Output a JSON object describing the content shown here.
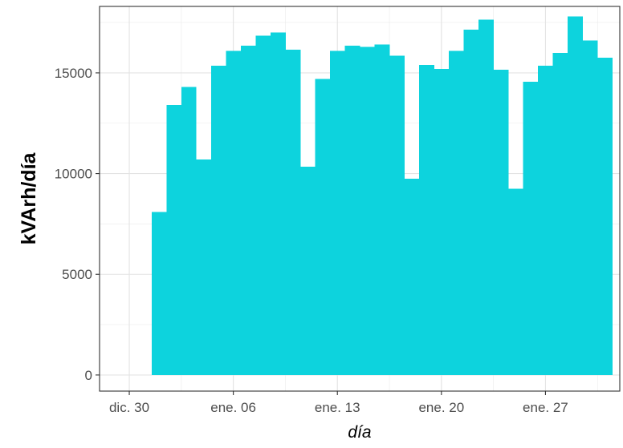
{
  "chart_data": {
    "type": "bar",
    "title": "",
    "xlabel": "día",
    "ylabel": "kVArh/día",
    "x_axis_type": "date",
    "x_domain": [
      "2022-12-28",
      "2023-02-01"
    ],
    "xticks": [
      {
        "date": "2022-12-30",
        "label": "dic. 30"
      },
      {
        "date": "2023-01-06",
        "label": "ene. 06"
      },
      {
        "date": "2023-01-13",
        "label": "ene. 13"
      },
      {
        "date": "2023-01-20",
        "label": "ene. 20"
      },
      {
        "date": "2023-01-27",
        "label": "ene. 27"
      }
    ],
    "ylim": [
      -800,
      18300
    ],
    "yticks": [
      0,
      5000,
      10000,
      15000
    ],
    "grid": true,
    "bar_color": "#0dd3dd",
    "dates": [
      "2023-01-01",
      "2023-01-02",
      "2023-01-03",
      "2023-01-04",
      "2023-01-05",
      "2023-01-06",
      "2023-01-07",
      "2023-01-08",
      "2023-01-09",
      "2023-01-10",
      "2023-01-11",
      "2023-01-12",
      "2023-01-13",
      "2023-01-14",
      "2023-01-15",
      "2023-01-16",
      "2023-01-17",
      "2023-01-18",
      "2023-01-19",
      "2023-01-20",
      "2023-01-21",
      "2023-01-22",
      "2023-01-23",
      "2023-01-24",
      "2023-01-25",
      "2023-01-26",
      "2023-01-27",
      "2023-01-28",
      "2023-01-29",
      "2023-01-30",
      "2023-01-31"
    ],
    "values": [
      8100,
      13400,
      14300,
      10700,
      15350,
      16100,
      16350,
      16850,
      17000,
      16150,
      10350,
      14700,
      16100,
      16350,
      16300,
      16400,
      15850,
      9750,
      15400,
      15200,
      16100,
      17150,
      17650,
      15150,
      9250,
      14550,
      15350,
      16000,
      17800,
      16600,
      15750
    ]
  }
}
